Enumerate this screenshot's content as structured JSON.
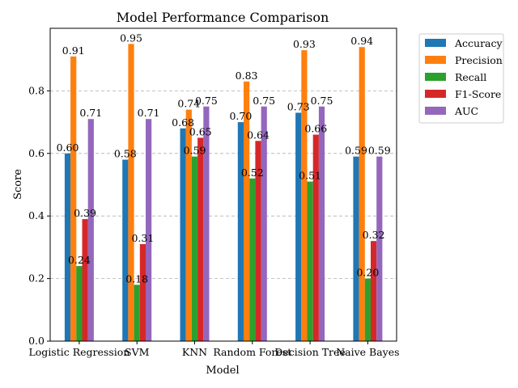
{
  "chart_data": {
    "type": "bar",
    "title": "Model Performance Comparison",
    "xlabel": "Model",
    "ylabel": "Score",
    "categories": [
      "Logistic Regression",
      "SVM",
      "KNN",
      "Random Forest",
      "Decision Tree",
      "Naive Bayes"
    ],
    "series": [
      {
        "name": "Accuracy",
        "color": "#1f77b4",
        "values": [
          0.6,
          0.58,
          0.68,
          0.7,
          0.73,
          0.59
        ]
      },
      {
        "name": "Precision",
        "color": "#ff7f0e",
        "values": [
          0.91,
          0.95,
          0.74,
          0.83,
          0.93,
          0.94
        ]
      },
      {
        "name": "Recall",
        "color": "#2ca02c",
        "values": [
          0.24,
          0.18,
          0.59,
          0.52,
          0.51,
          0.2
        ]
      },
      {
        "name": "F1-Score",
        "color": "#d62728",
        "values": [
          0.39,
          0.31,
          0.65,
          0.64,
          0.66,
          0.32
        ]
      },
      {
        "name": "AUC",
        "color": "#9467bd",
        "values": [
          0.71,
          0.71,
          0.75,
          0.75,
          0.75,
          0.59
        ]
      }
    ],
    "ylim": [
      0.0,
      1.0
    ],
    "yticks": [
      "0.0",
      "0.2",
      "0.4",
      "0.6",
      "0.8"
    ],
    "grid": "y-dashed",
    "legend_position": "outside-top-right"
  }
}
